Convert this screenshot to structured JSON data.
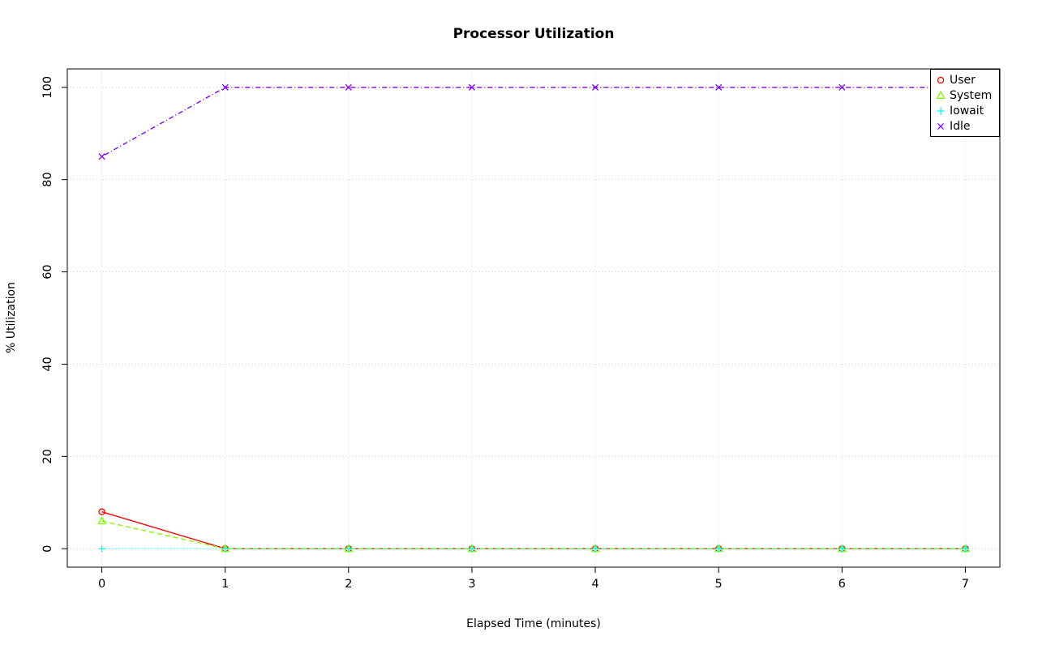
{
  "chart_data": {
    "type": "line",
    "title": "Processor Utilization",
    "xlabel": "Elapsed Time (minutes)",
    "ylabel": "% Utilization",
    "x": [
      0,
      1,
      2,
      3,
      4,
      5,
      6,
      7
    ],
    "xlim": [
      0,
      7
    ],
    "ylim": [
      0,
      100
    ],
    "xticks": [
      0,
      1,
      2,
      3,
      4,
      5,
      6,
      7
    ],
    "yticks": [
      0,
      20,
      40,
      60,
      80,
      100
    ],
    "grid": true,
    "grid_color": "#d3d3d3",
    "axis_color": "#000000",
    "legend_position": "top-right",
    "series": [
      {
        "name": "User",
        "color": "#ff0000",
        "marker": "circle",
        "linetype": "solid",
        "values": [
          8,
          0,
          0,
          0,
          0,
          0,
          0,
          0
        ]
      },
      {
        "name": "System",
        "color": "#80ff00",
        "marker": "triangle",
        "linetype": "dashed",
        "values": [
          6,
          0,
          0,
          0,
          0,
          0,
          0,
          0
        ]
      },
      {
        "name": "Iowait",
        "color": "#00ffff",
        "marker": "plus",
        "linetype": "dotted",
        "values": [
          0,
          0,
          0,
          0,
          0,
          0,
          0,
          0
        ]
      },
      {
        "name": "Idle",
        "color": "#8000ff",
        "marker": "x",
        "linetype": "dashdot",
        "values": [
          85,
          100,
          100,
          100,
          100,
          100,
          100,
          100
        ]
      }
    ]
  }
}
